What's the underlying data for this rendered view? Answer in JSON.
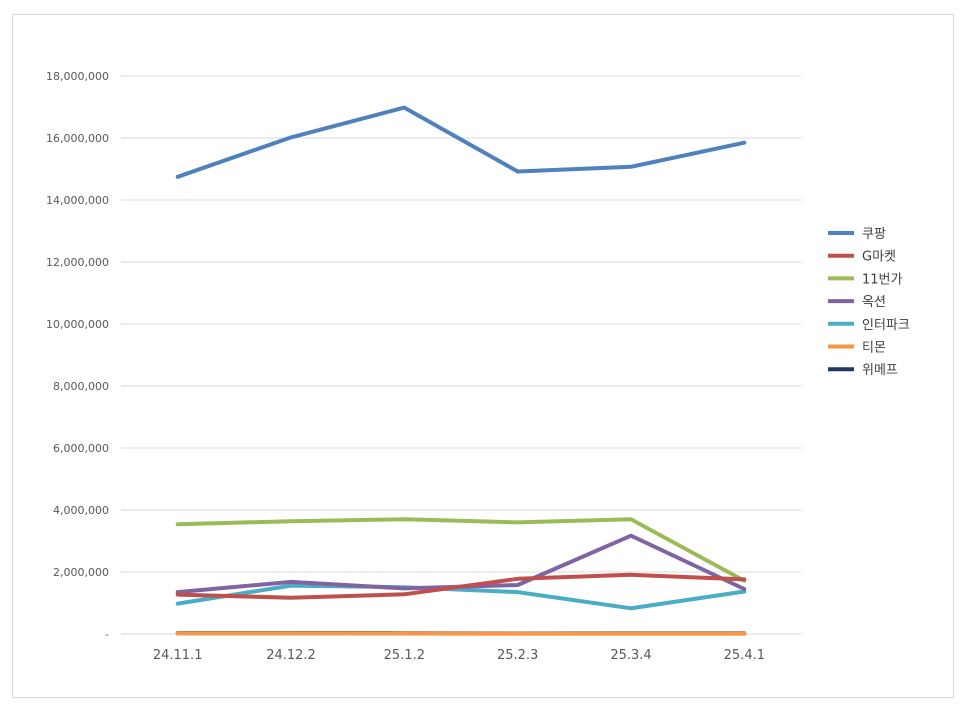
{
  "chart_data": {
    "type": "line",
    "categories": [
      "24.11.1",
      "24.12.2",
      "25.1.2",
      "25.2.3",
      "25.3.4",
      "25.4.1"
    ],
    "y_ticks": [
      {
        "value": 0,
        "label": "-"
      },
      {
        "value": 2000000,
        "label": "2,000,000"
      },
      {
        "value": 4000000,
        "label": "4,000,000"
      },
      {
        "value": 6000000,
        "label": "6,000,000"
      },
      {
        "value": 8000000,
        "label": "8,000,000"
      },
      {
        "value": 10000000,
        "label": "10,000,000"
      },
      {
        "value": 12000000,
        "label": "12,000,000"
      },
      {
        "value": 14000000,
        "label": "14,000,000"
      },
      {
        "value": 16000000,
        "label": "16,000,000"
      },
      {
        "value": 18000000,
        "label": "18,000,000"
      }
    ],
    "ylim": [
      0,
      18000000
    ],
    "grid": true,
    "legend_position": "right",
    "series": [
      {
        "name": "쿠팡",
        "color": "#4f81bd",
        "values": [
          14750000,
          16020000,
          16980000,
          14920000,
          15070000,
          15850000
        ]
      },
      {
        "name": "G마켓",
        "color": "#c0504d",
        "values": [
          1270000,
          1170000,
          1280000,
          1780000,
          1910000,
          1760000
        ]
      },
      {
        "name": "11번가",
        "color": "#9bbb59",
        "values": [
          3540000,
          3640000,
          3700000,
          3600000,
          3700000,
          1720000
        ]
      },
      {
        "name": "옥션",
        "color": "#8064a2",
        "values": [
          1350000,
          1680000,
          1470000,
          1580000,
          3170000,
          1450000
        ]
      },
      {
        "name": "인터파크",
        "color": "#4bacc6",
        "values": [
          980000,
          1560000,
          1510000,
          1350000,
          830000,
          1370000
        ]
      },
      {
        "name": "티몬",
        "color": "#f79646",
        "values": [
          20000,
          20000,
          15000,
          5000,
          5000,
          5000
        ]
      },
      {
        "name": "위메프",
        "color": "#1f3864",
        "values": [
          30000,
          30000,
          25000,
          15000,
          20000,
          20000
        ]
      }
    ]
  }
}
